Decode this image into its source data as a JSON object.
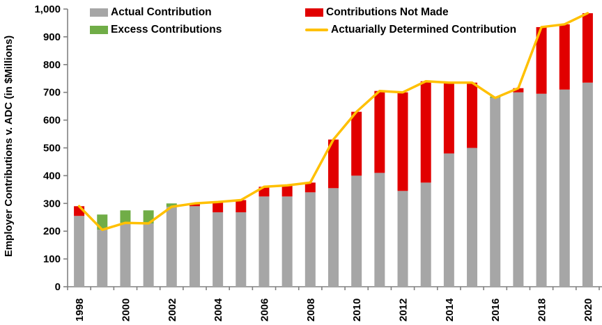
{
  "colors": {
    "actual": "#A6A6A6",
    "excess": "#70AD47",
    "not_made": "#E10000",
    "adc_line": "#FFC000",
    "axis": "#808080",
    "text": "#000000",
    "background": "#FFFFFF"
  },
  "legend": {
    "items": [
      {
        "label": "Actual Contribution",
        "color": "#A6A6A6",
        "swatch": "box"
      },
      {
        "label": "Excess Contributions",
        "color": "#70AD47",
        "swatch": "box"
      },
      {
        "label": "Contributions Not Made",
        "color": "#E10000",
        "swatch": "box"
      },
      {
        "label": "Actuarially Determined Contribution",
        "color": "#FFC000",
        "swatch": "line"
      }
    ]
  },
  "chart_data": {
    "type": "bar",
    "stacked": true,
    "title": "",
    "xlabel": "",
    "ylabel": "Employer Contributions v. ADC (in $Millions)",
    "ylim": [
      0,
      1000
    ],
    "ytick_step": 100,
    "grid": false,
    "legend_position": "top-inside",
    "x_label_every": 2,
    "x_tick_label_rotation": -90,
    "categories": [
      1998,
      1999,
      2000,
      2001,
      2002,
      2003,
      2004,
      2005,
      2006,
      2007,
      2008,
      2009,
      2010,
      2011,
      2012,
      2013,
      2014,
      2015,
      2016,
      2017,
      2018,
      2019,
      2020
    ],
    "series": [
      {
        "name": "Actual Contribution",
        "type": "bar",
        "color": "#A6A6A6",
        "values": [
          255,
          205,
          230,
          228,
          288,
          290,
          268,
          268,
          325,
          325,
          340,
          355,
          400,
          410,
          345,
          375,
          480,
          500,
          680,
          700,
          695,
          710,
          735
        ]
      },
      {
        "name": "Excess Contributions",
        "type": "bar",
        "color": "#70AD47",
        "values": [
          0,
          55,
          45,
          47,
          12,
          0,
          0,
          0,
          0,
          0,
          0,
          0,
          0,
          0,
          0,
          0,
          0,
          0,
          5,
          0,
          0,
          0,
          0
        ]
      },
      {
        "name": "Contributions Not Made",
        "type": "bar",
        "color": "#E10000",
        "values": [
          35,
          0,
          0,
          0,
          0,
          10,
          37,
          44,
          35,
          40,
          35,
          175,
          230,
          295,
          355,
          365,
          255,
          235,
          0,
          15,
          240,
          235,
          250
        ]
      },
      {
        "name": "Actuarially Determined Contribution",
        "type": "line",
        "color": "#FFC000",
        "values": [
          290,
          205,
          230,
          228,
          288,
          300,
          305,
          312,
          360,
          365,
          375,
          530,
          630,
          705,
          700,
          740,
          735,
          735,
          680,
          715,
          935,
          945,
          985
        ]
      }
    ]
  }
}
